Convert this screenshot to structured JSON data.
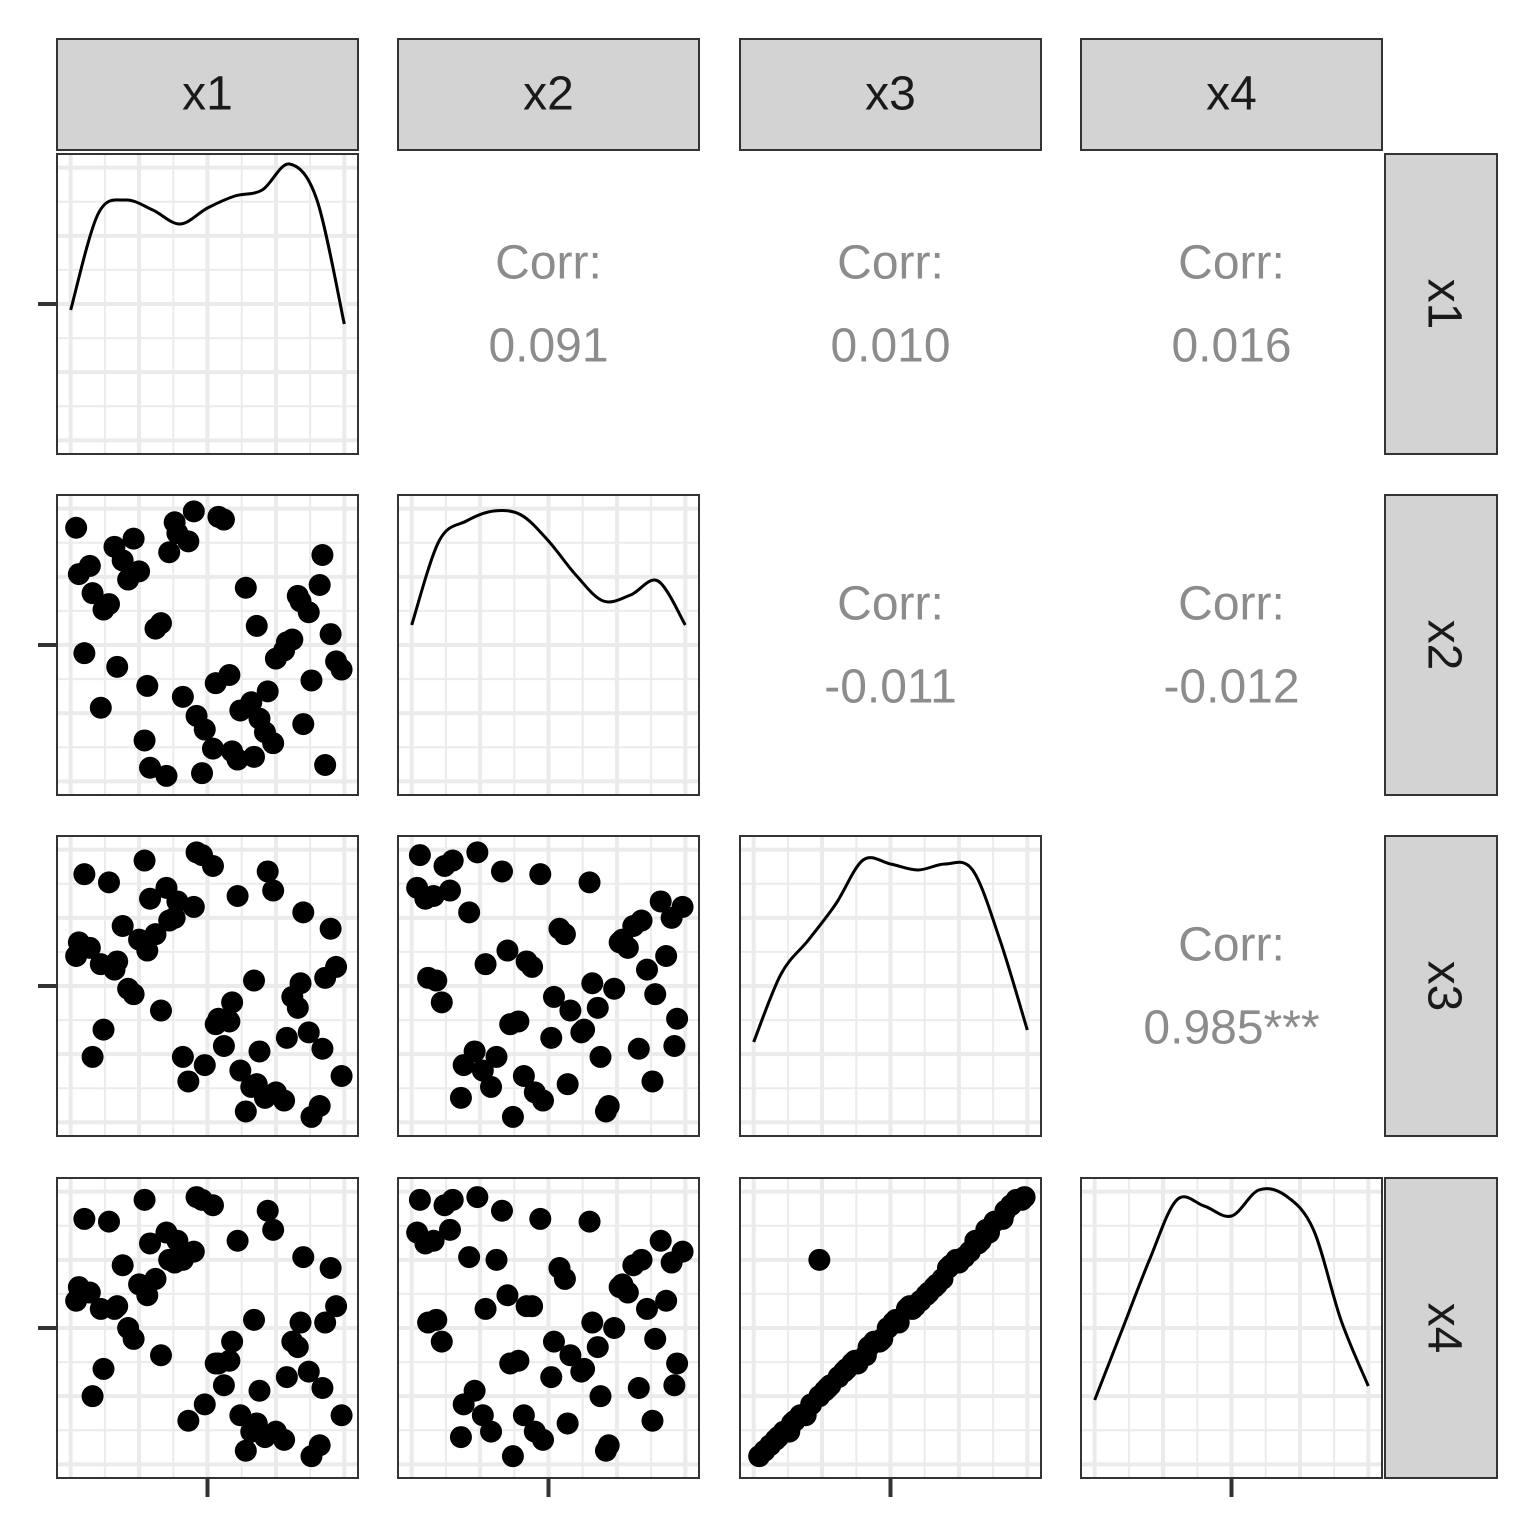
{
  "chart_data": {
    "type": "scatter-matrix",
    "variables": [
      "x1",
      "x2",
      "x3",
      "x4"
    ],
    "columns": [
      [
        0.12,
        0.85,
        0.43,
        0.67,
        0.05,
        0.91,
        0.28,
        0.56,
        0.74,
        0.33,
        0.19,
        0.62,
        0.97,
        0.48,
        0.08,
        0.81,
        0.39,
        0.71,
        0.25,
        0.58,
        0.93,
        0.14,
        0.66,
        0.36,
        0.79,
        0.02,
        0.52,
        0.88,
        0.21,
        0.45,
        0.69,
        0.31,
        0.99,
        0.16,
        0.61,
        0.83,
        0.41,
        0.07,
        0.75,
        0.27,
        0.54,
        0.95,
        0.11,
        0.64,
        0.35,
        0.87,
        0.23,
        0.72,
        0.49,
        0.03,
        0.78,
        0.38,
        0.59,
        0.17,
        0.92,
        0.46,
        0.68,
        0.29,
        0.84,
        0.53
      ],
      [
        0.63,
        0.21,
        0.88,
        0.09,
        0.47,
        0.72,
        0.35,
        0.96,
        0.14,
        0.58,
        0.81,
        0.26,
        0.44,
        0.03,
        0.69,
        0.52,
        0.91,
        0.18,
        0.77,
        0.39,
        0.06,
        0.65,
        0.29,
        0.84,
        0.51,
        0.93,
        0.12,
        0.37,
        0.74,
        0.99,
        0.23,
        0.56,
        0.41,
        0.86,
        0.08,
        0.68,
        0.31,
        0.79,
        0.45,
        0.15,
        0.97,
        0.54,
        0.27,
        0.71,
        0.02,
        0.62,
        0.89,
        0.33,
        0.19,
        0.76,
        0.48,
        0.95,
        0.11,
        0.42,
        0.83,
        0.24,
        0.57,
        0.05,
        0.66,
        0.36
      ],
      [
        0.34,
        0.77,
        0.15,
        0.52,
        0.91,
        0.06,
        0.63,
        0.28,
        0.85,
        0.41,
        0.72,
        0.19,
        0.57,
        0.98,
        0.24,
        0.46,
        0.81,
        0.09,
        0.67,
        0.37,
        0.53,
        0.88,
        0.13,
        0.74,
        0.31,
        0.61,
        0.94,
        0.02,
        0.49,
        0.79,
        0.26,
        0.69,
        0.17,
        0.56,
        0.83,
        0.42,
        0.24,
        0.64,
        0.11,
        0.96,
        0.38,
        0.71,
        0.58,
        0.04,
        0.86,
        0.33,
        0.47,
        0.92,
        0.21,
        0.66,
        0.08,
        0.75,
        0.44,
        0.59,
        0.27,
        0.99,
        0.14,
        0.82,
        0.51,
        0.36
      ],
      [
        0.35,
        0.76,
        0.16,
        0.53,
        0.9,
        0.07,
        0.62,
        0.29,
        0.86,
        0.4,
        0.73,
        0.18,
        0.58,
        0.97,
        0.25,
        0.45,
        0.82,
        0.1,
        0.66,
        0.38,
        0.52,
        0.89,
        0.12,
        0.75,
        0.32,
        0.6,
        0.95,
        0.03,
        0.5,
        0.78,
        0.27,
        0.68,
        0.18,
        0.57,
        0.82,
        0.43,
        0.75,
        0.63,
        0.12,
        0.97,
        0.37,
        0.72,
        0.57,
        0.05,
        0.85,
        0.34,
        0.46,
        0.93,
        0.22,
        0.65,
        0.09,
        0.74,
        0.45,
        0.58,
        0.28,
        0.98,
        0.15,
        0.81,
        0.52,
        0.37
      ]
    ],
    "xlim": [
      -0.05,
      1.05
    ],
    "ylim": [
      -0.05,
      1.05
    ],
    "ticks": [
      0.5
    ],
    "grid": [
      0,
      0.125,
      0.25,
      0.375,
      0.5,
      0.625,
      0.75,
      0.875,
      1
    ],
    "density_x": [
      0,
      0.1,
      0.2,
      0.3,
      0.4,
      0.5,
      0.6,
      0.7,
      0.8,
      0.9,
      1
    ],
    "density_ylim": [
      0,
      1.5
    ],
    "densities": [
      [
        0.72,
        1.2,
        1.27,
        1.22,
        1.15,
        1.23,
        1.29,
        1.32,
        1.45,
        1.27,
        0.65
      ],
      [
        0.85,
        1.27,
        1.37,
        1.42,
        1.4,
        1.27,
        1.1,
        0.97,
        1.0,
        1.07,
        0.85
      ],
      [
        0.47,
        0.81,
        0.98,
        1.16,
        1.38,
        1.36,
        1.33,
        1.36,
        1.33,
        0.98,
        0.53
      ],
      [
        0.39,
        0.74,
        1.09,
        1.39,
        1.36,
        1.31,
        1.44,
        1.41,
        1.24,
        0.79,
        0.46
      ]
    ],
    "corr_label": "Corr:",
    "correlations": [
      {
        "value": 0.091,
        "label": "0.091"
      },
      {
        "value": 0.01,
        "label": "0.010"
      },
      {
        "value": 0.016,
        "label": "0.016"
      },
      {
        "value": -0.011,
        "label": "-0.011"
      },
      {
        "value": -0.012,
        "label": "-0.012"
      },
      {
        "value": 0.985,
        "label": "0.985***"
      }
    ],
    "point_color": "#000000",
    "line_color": "#000000"
  }
}
